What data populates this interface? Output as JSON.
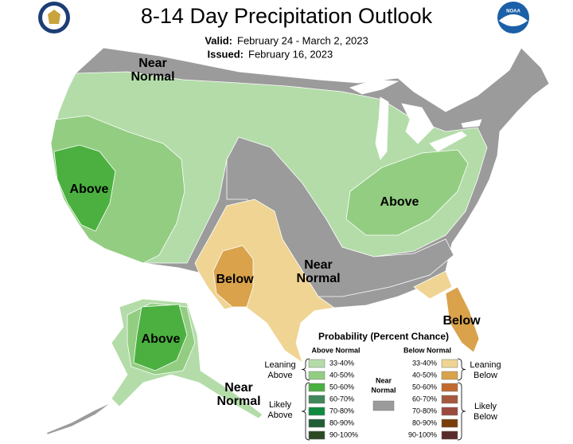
{
  "header": {
    "title": "8-14 Day Precipitation Outlook",
    "valid_label": "Valid:",
    "valid": "February 24 - March 2, 2023",
    "issued_label": "Issued:",
    "issued": "February 16, 2023",
    "noaa_logo": "NOAA"
  },
  "map_labels": [
    {
      "lines": [
        "Near",
        "Normal"
      ]
    },
    {
      "lines": [
        "Above"
      ]
    },
    {
      "lines": [
        "Above"
      ]
    },
    {
      "lines": [
        "Below"
      ]
    },
    {
      "lines": [
        "Near",
        "Normal"
      ]
    },
    {
      "lines": [
        "Below"
      ]
    },
    {
      "lines": [
        "Above"
      ]
    },
    {
      "lines": [
        "Near",
        "Normal"
      ]
    }
  ],
  "legend": {
    "title": "Probability (Percent Chance)",
    "above_heading": "Above Normal",
    "below_heading": "Below Normal",
    "near": {
      "lines": [
        "Near",
        "Normal"
      ],
      "color": "#9b9b9b"
    },
    "leaning_above": [
      "Leaning",
      "Above"
    ],
    "likely_above": [
      "Likely",
      "Above"
    ],
    "leaning_below": [
      "Leaning",
      "Below"
    ],
    "likely_below": [
      "Likely",
      "Below"
    ],
    "above": [
      {
        "range": "33-40%",
        "color": "#b3dca9"
      },
      {
        "range": "40-50%",
        "color": "#93cd82"
      },
      {
        "range": "50-60%",
        "color": "#4bb040"
      },
      {
        "range": "60-70%",
        "color": "#41875a"
      },
      {
        "range": "70-80%",
        "color": "#108a3f"
      },
      {
        "range": "80-90%",
        "color": "#1f5e37"
      },
      {
        "range": "90-100%",
        "color": "#2b4a23"
      }
    ],
    "below": [
      {
        "range": "33-40%",
        "color": "#f0d494"
      },
      {
        "range": "40-50%",
        "color": "#d9a24b"
      },
      {
        "range": "50-60%",
        "color": "#c16a30"
      },
      {
        "range": "60-70%",
        "color": "#a5583e"
      },
      {
        "range": "70-80%",
        "color": "#9d4a3e"
      },
      {
        "range": "80-90%",
        "color": "#7a3e0a"
      },
      {
        "range": "90-100%",
        "color": "#5b2a2a"
      }
    ]
  }
}
